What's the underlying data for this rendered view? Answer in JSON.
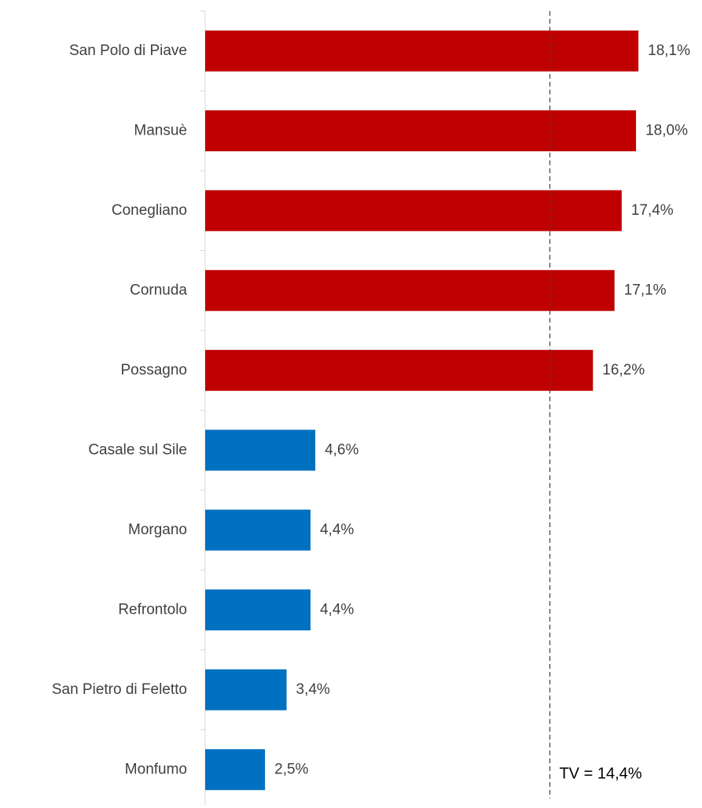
{
  "chart_data": {
    "type": "bar",
    "orientation": "horizontal",
    "categories": [
      "San Polo di Piave",
      "Mansuè",
      "Conegliano",
      "Cornuda",
      "Possagno",
      "Casale sul Sile",
      "Morgano",
      "Refrontolo",
      "San Pietro di Feletto",
      "Monfumo"
    ],
    "values": [
      18.1,
      18.0,
      17.4,
      17.1,
      16.2,
      4.6,
      4.4,
      4.4,
      3.4,
      2.5
    ],
    "value_labels": [
      "18,1%",
      "18,0%",
      "17,4%",
      "17,1%",
      "16,2%",
      "4,6%",
      "4,4%",
      "4,4%",
      "3,4%",
      "2,5%"
    ],
    "colors": [
      "#c00000",
      "#c00000",
      "#c00000",
      "#c00000",
      "#c00000",
      "#0070c0",
      "#0070c0",
      "#0070c0",
      "#0070c0",
      "#0070c0"
    ],
    "xlim": [
      0,
      20
    ],
    "reference_line": {
      "value": 14.4,
      "label": "TV = 14,4%"
    }
  }
}
